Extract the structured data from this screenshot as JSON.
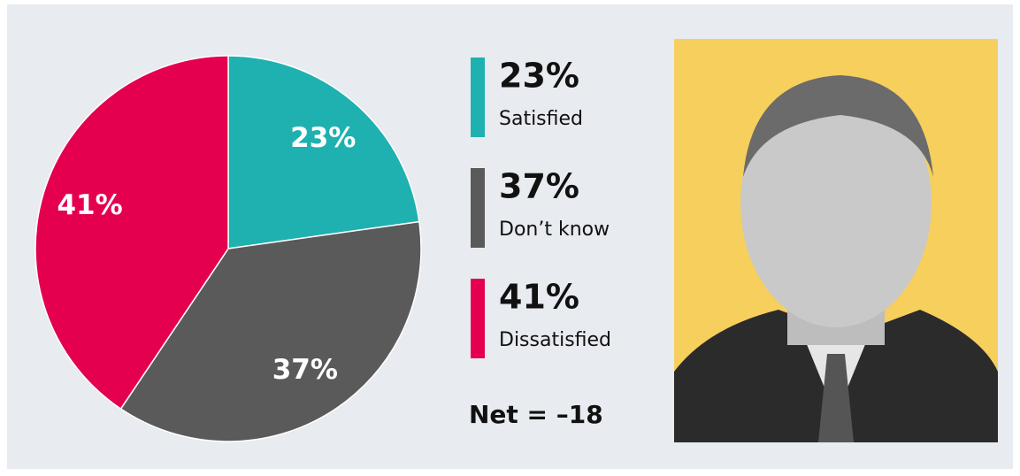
{
  "chart_data": {
    "type": "pie",
    "categories": [
      "Satisfied",
      "Don’t know",
      "Dissatisfied"
    ],
    "values": [
      23,
      37,
      41
    ],
    "value_labels": [
      "23%",
      "37%",
      "41%"
    ],
    "colors": [
      "#1eb1b0",
      "#5a5a5a",
      "#e4004f"
    ],
    "annotation": "Net = –18"
  }
}
